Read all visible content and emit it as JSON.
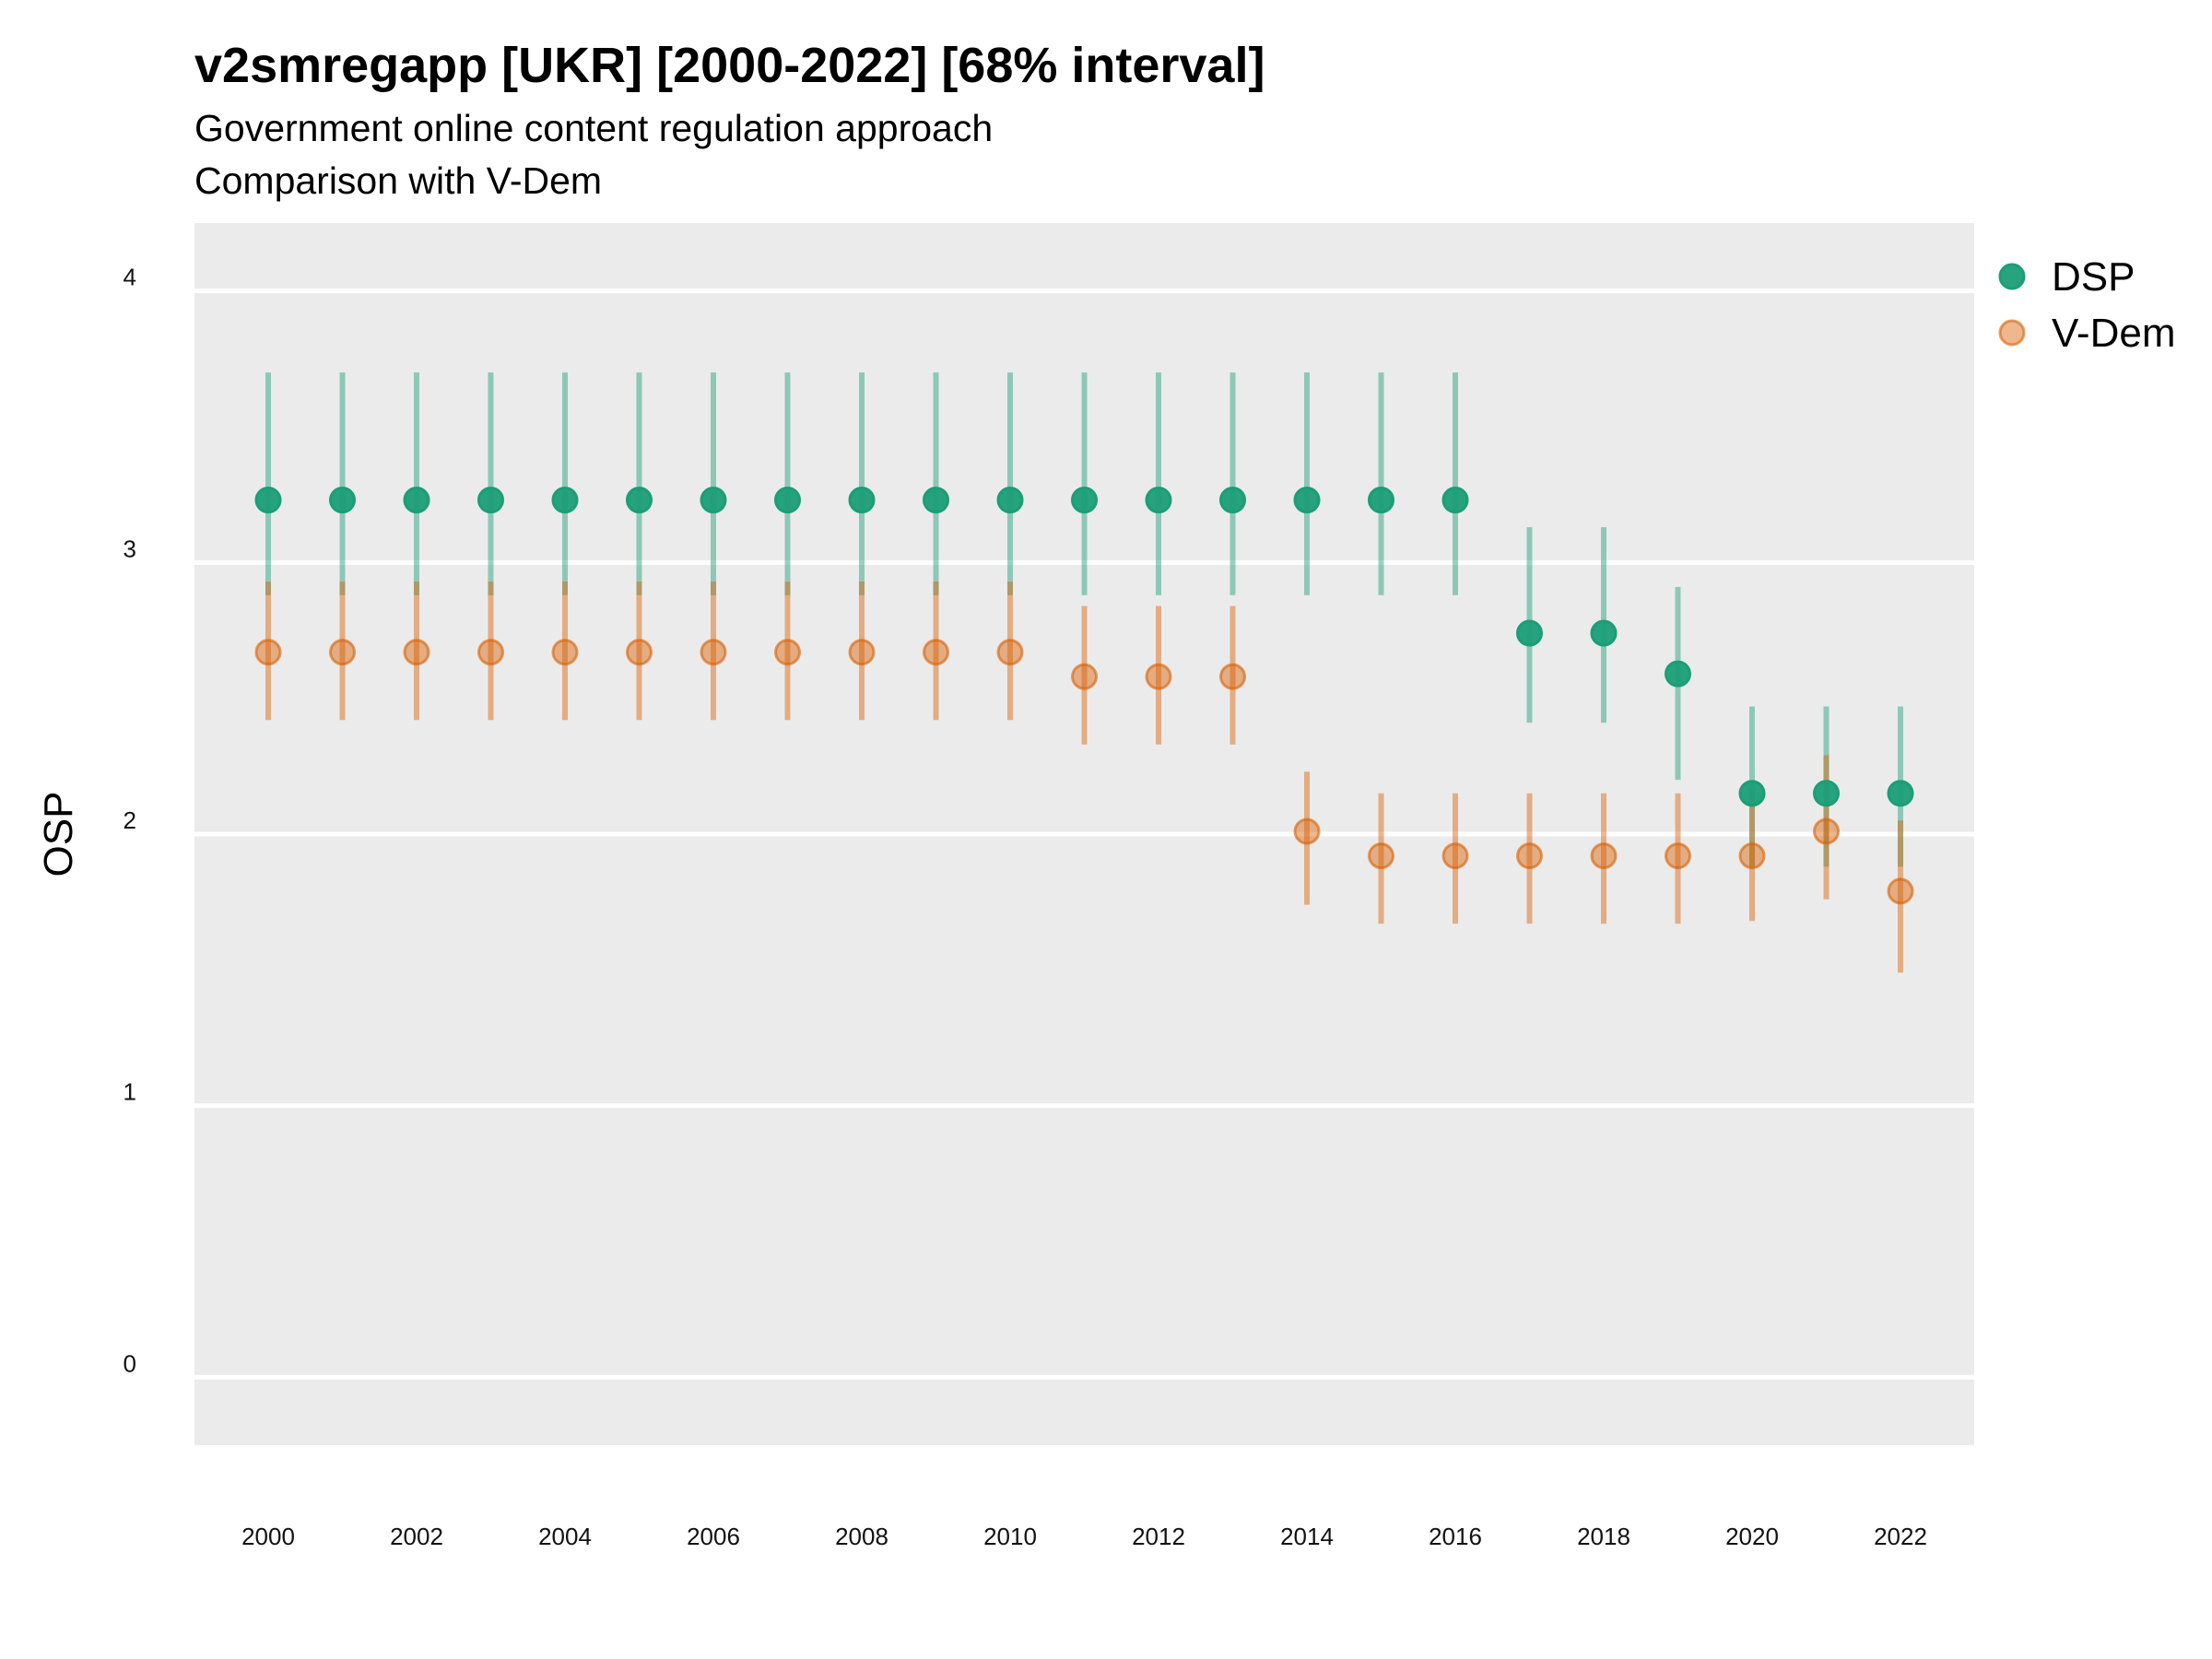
{
  "chart_data": {
    "type": "scatter",
    "title": "v2smregapp [UKR] [2000-2022] [68% interval]",
    "subtitle": "Government online content regulation approach",
    "subtitle2": "Comparison with V-Dem",
    "ylabel": "OSP",
    "xlabel": "",
    "ylim": [
      -0.25,
      4.25
    ],
    "yticks": [
      0,
      1,
      2,
      3,
      4
    ],
    "xlim": [
      1999.03,
      2023.0
    ],
    "xticks": [
      2000,
      2002,
      2004,
      2006,
      2008,
      2010,
      2012,
      2014,
      2016,
      2018,
      2020,
      2022
    ],
    "grid": true,
    "legend_position": "right",
    "series": [
      {
        "name": "DSP",
        "color": "#1b9e77",
        "x": [
          2000,
          2001,
          2002,
          2003,
          2004,
          2005,
          2006,
          2007,
          2008,
          2009,
          2010,
          2011,
          2012,
          2013,
          2014,
          2015,
          2016,
          2017,
          2018,
          2019,
          2020,
          2021,
          2022
        ],
        "y": [
          3.23,
          3.23,
          3.23,
          3.23,
          3.23,
          3.23,
          3.23,
          3.23,
          3.23,
          3.23,
          3.23,
          3.23,
          3.23,
          3.23,
          3.23,
          3.23,
          3.23,
          2.74,
          2.74,
          2.59,
          2.15,
          2.15,
          2.15
        ],
        "lower": [
          2.88,
          2.88,
          2.88,
          2.88,
          2.88,
          2.88,
          2.88,
          2.88,
          2.88,
          2.88,
          2.88,
          2.88,
          2.88,
          2.88,
          2.88,
          2.88,
          2.88,
          2.41,
          2.41,
          2.2,
          1.88,
          1.88,
          1.88
        ],
        "upper": [
          3.7,
          3.7,
          3.7,
          3.7,
          3.7,
          3.7,
          3.7,
          3.7,
          3.7,
          3.7,
          3.7,
          3.7,
          3.7,
          3.7,
          3.7,
          3.7,
          3.7,
          3.13,
          3.13,
          2.91,
          2.47,
          2.47,
          2.47
        ]
      },
      {
        "name": "V-Dem",
        "color": "#d95f02",
        "x": [
          2000,
          2001,
          2002,
          2003,
          2004,
          2005,
          2006,
          2007,
          2008,
          2009,
          2010,
          2011,
          2012,
          2013,
          2014,
          2015,
          2016,
          2017,
          2018,
          2019,
          2020,
          2021,
          2022
        ],
        "y": [
          2.67,
          2.67,
          2.67,
          2.67,
          2.67,
          2.67,
          2.67,
          2.67,
          2.67,
          2.67,
          2.67,
          2.58,
          2.58,
          2.58,
          2.01,
          1.92,
          1.92,
          1.92,
          1.92,
          1.92,
          1.92,
          2.01,
          1.79
        ],
        "lower": [
          2.42,
          2.42,
          2.42,
          2.42,
          2.42,
          2.42,
          2.42,
          2.42,
          2.42,
          2.42,
          2.42,
          2.33,
          2.33,
          2.33,
          1.74,
          1.67,
          1.67,
          1.67,
          1.67,
          1.67,
          1.68,
          1.76,
          1.49
        ],
        "upper": [
          2.93,
          2.93,
          2.93,
          2.93,
          2.93,
          2.93,
          2.93,
          2.93,
          2.93,
          2.93,
          2.93,
          2.84,
          2.84,
          2.84,
          2.23,
          2.15,
          2.15,
          2.15,
          2.15,
          2.15,
          2.15,
          2.29,
          2.05
        ]
      }
    ]
  }
}
